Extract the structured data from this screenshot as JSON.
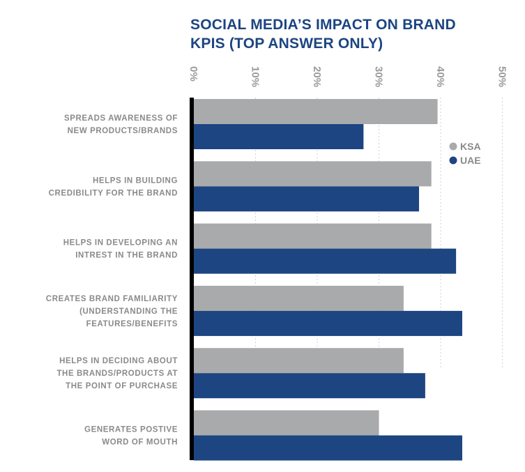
{
  "chart_data": {
    "type": "bar",
    "orientation": "horizontal",
    "title": "SOCIAL MEDIA’S IMPACT ON BRAND KPIS (TOP ANSWER ONLY)",
    "title_lines": [
      "SOCIAL MEDIA’S IMPACT ON BRAND",
      "KPIS (TOP ANSWER ONLY)"
    ],
    "categories": [
      [
        "SPREADS AWARENESS OF",
        "NEW PRODUCTS/BRANDS"
      ],
      [
        "HELPS IN BUILDING",
        "CREDIBILITY FOR THE BRAND"
      ],
      [
        "HELPS IN DEVELOPING AN",
        "INTREST IN THE BRAND"
      ],
      [
        "CREATES BRAND FAMILIARITY",
        "(UNDERSTANDING THE",
        "FEATURES/BENEFITS"
      ],
      [
        "HELPS IN DECIDING ABOUT",
        "THE BRANDS/PRODUCTS AT",
        "THE POINT OF PURCHASE"
      ],
      [
        "GENERATES POSTIVE",
        "WORD OF MOUTH"
      ]
    ],
    "series": [
      {
        "name": "KSA",
        "color": "#a9aaac",
        "values": [
          39.5,
          38.5,
          38.5,
          34,
          34,
          30
        ]
      },
      {
        "name": "UAE",
        "color": "#1c4582",
        "values": [
          27.5,
          36.5,
          42.5,
          43.5,
          37.5,
          43.5
        ]
      }
    ],
    "xlim": [
      0,
      50
    ],
    "xticks": [
      "0%",
      "10%",
      "20%",
      "30%",
      "40%",
      "50%"
    ],
    "grid": "vertical dotted",
    "legend_position": "right"
  }
}
